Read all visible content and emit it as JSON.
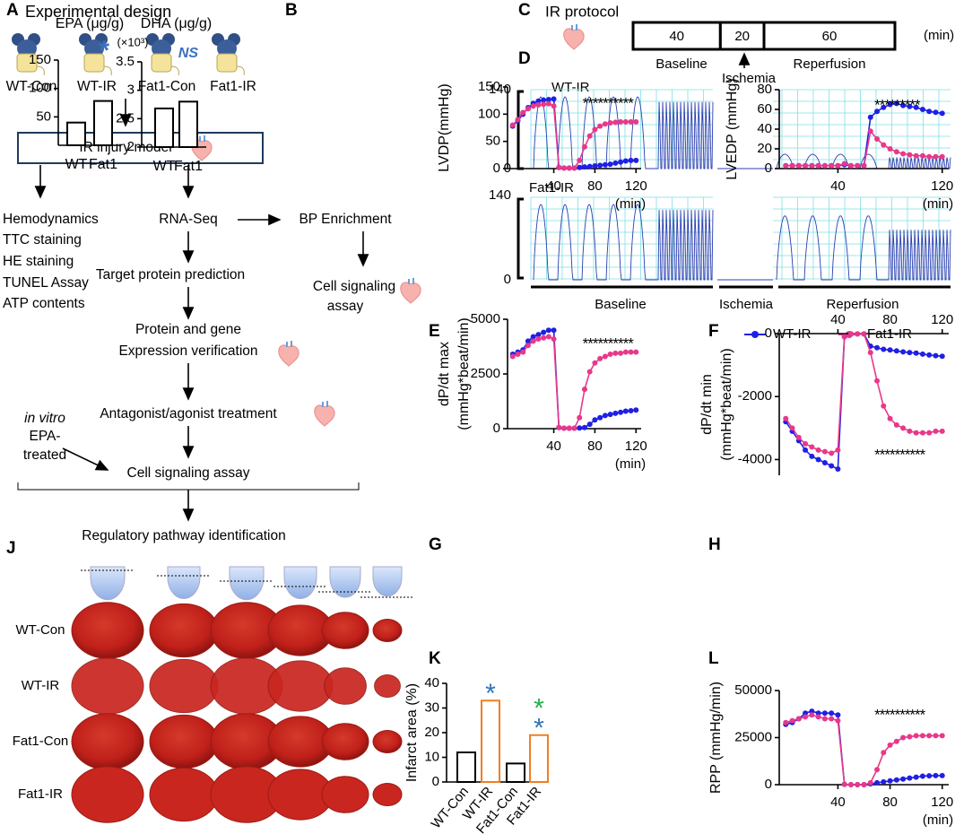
{
  "panel_labels": [
    "A",
    "B",
    "C",
    "D",
    "E",
    "F",
    "G",
    "H",
    "J",
    "K",
    "L"
  ],
  "flowchart": {
    "title": "Experimental design",
    "groups": [
      "WT-Con",
      "WT-IR",
      "Fat1-Con",
      "Fat1-IR"
    ],
    "model": "IR injury model",
    "assays": [
      "Hemodynamics",
      "TTC staining",
      "HE staining",
      "TUNEL Assay",
      "ATP contents"
    ],
    "rna_seq": "RNA-Seq",
    "bp": "BP Enrichment",
    "cell_assay_bp": [
      "Cell signaling",
      "assay"
    ],
    "target": "Target protein prediction",
    "verification": [
      "Protein and gene",
      "Expression verification"
    ],
    "in_vitro": [
      "in vitro",
      "EPA-",
      "treated"
    ],
    "treatment": "Antagonist/agonist treatment",
    "cell_assay": "Cell signaling assay",
    "pathway": "Regulatory pathway identification"
  },
  "protocol": {
    "title": "IR protocol",
    "segments": [
      40,
      20,
      60
    ],
    "unit": "(min)",
    "phases": [
      "Baseline",
      "Ischemia",
      "Reperfusion"
    ]
  },
  "traces": {
    "rows": [
      "WT-IR",
      "Fat1-IR"
    ],
    "ymax": 140,
    "ymin": 0,
    "phases": [
      "Baseline",
      "Ischemia",
      "Reperfusion"
    ]
  },
  "legend": [
    {
      "name": "WT-IR",
      "color": "#1f1fe6"
    },
    {
      "name": "Fat1-IR",
      "color": "#e8388a"
    }
  ],
  "heart_images": {
    "rows": [
      "WT-Con",
      "WT-IR",
      "Fat1-Con",
      "Fat1-IR"
    ]
  },
  "chart_data": [
    {
      "type": "bar",
      "title": "EPA (μg/g)",
      "categories": [
        "WT",
        "Fat1"
      ],
      "values": [
        40,
        78
      ],
      "ylim": [
        0,
        150
      ],
      "yticks": [
        50,
        100,
        150
      ],
      "annotation": "*",
      "annotation_color": "#3b6fc2"
    },
    {
      "type": "bar",
      "title": "DHA (μg/g)",
      "scale_label": "(×10³)",
      "categories": [
        "WT",
        "Fat1"
      ],
      "values": [
        2.68,
        2.8
      ],
      "ylim": [
        2,
        3.5
      ],
      "yticks": [
        2,
        2.5,
        3,
        3.5
      ],
      "annotation": "NS",
      "annotation_color": "#3b6fc2"
    },
    {
      "type": "line",
      "ylabel": "LVDP(mmHg)",
      "xlabel": "(min)",
      "annotation": "**********",
      "x": [
        0,
        5,
        10,
        15,
        20,
        25,
        30,
        35,
        40,
        45,
        50,
        55,
        60,
        65,
        70,
        75,
        80,
        85,
        90,
        95,
        100,
        105,
        110,
        115,
        120
      ],
      "series": [
        {
          "values": [
            78,
            88,
            100,
            112,
            120,
            124,
            126,
            127,
            128,
            2,
            1,
            1,
            1,
            2,
            3,
            4,
            5,
            6,
            7,
            8,
            10,
            12,
            14,
            15,
            15
          ]
        },
        {
          "values": [
            80,
            90,
            103,
            110,
            115,
            117,
            118,
            119,
            115,
            2,
            1,
            1,
            1,
            15,
            40,
            60,
            72,
            78,
            82,
            84,
            85,
            86,
            86,
            86,
            86
          ]
        }
      ],
      "xlim": [
        -5,
        125
      ],
      "xticks": [
        40,
        80,
        120
      ],
      "ylim": [
        0,
        150
      ],
      "yticks": [
        0,
        50,
        100,
        150
      ]
    },
    {
      "type": "line",
      "ylabel": "LVEDP (mmHg)",
      "xlabel": "(min)",
      "annotation": "*********",
      "x": [
        0,
        5,
        10,
        15,
        20,
        25,
        30,
        35,
        40,
        45,
        50,
        55,
        60,
        65,
        70,
        75,
        80,
        85,
        90,
        95,
        100,
        105,
        110,
        115,
        120
      ],
      "series": [
        {
          "values": [
            3,
            3,
            3,
            3,
            3,
            3,
            3,
            3,
            3,
            4,
            3,
            3,
            3,
            52,
            58,
            62,
            65,
            66,
            64,
            63,
            62,
            60,
            58,
            57,
            56
          ]
        },
        {
          "values": [
            3,
            3,
            3,
            3,
            3,
            3,
            3,
            3,
            3,
            5,
            3,
            3,
            3,
            38,
            30,
            24,
            20,
            17,
            15,
            14,
            13,
            13,
            12,
            12,
            12
          ]
        }
      ],
      "xlim": [
        -5,
        125
      ],
      "xticks": [
        40,
        120
      ],
      "ylim": [
        0,
        80
      ],
      "yticks": [
        0,
        20,
        40,
        60,
        80
      ]
    },
    {
      "type": "line",
      "ylabel": "dP/dt max",
      "ylabel2": "(mmHg*beat/min)",
      "xlabel": "(min)",
      "annotation": "**********",
      "x": [
        0,
        5,
        10,
        15,
        20,
        25,
        30,
        35,
        40,
        45,
        50,
        55,
        60,
        65,
        70,
        75,
        80,
        85,
        90,
        95,
        100,
        105,
        110,
        115,
        120
      ],
      "series": [
        {
          "values": [
            3400,
            3500,
            3600,
            4000,
            4200,
            4300,
            4400,
            4500,
            4500,
            50,
            20,
            20,
            20,
            30,
            50,
            200,
            400,
            500,
            600,
            650,
            700,
            750,
            800,
            820,
            850
          ]
        },
        {
          "values": [
            3300,
            3400,
            3500,
            3800,
            4000,
            4100,
            4150,
            4200,
            4100,
            50,
            20,
            20,
            20,
            500,
            1800,
            2600,
            3000,
            3200,
            3300,
            3400,
            3450,
            3450,
            3500,
            3500,
            3500
          ]
        }
      ],
      "xlim": [
        -5,
        125
      ],
      "xticks": [
        40,
        80,
        120
      ],
      "ylim": [
        0,
        5000
      ],
      "yticks": [
        0,
        2500,
        5000
      ]
    },
    {
      "type": "line",
      "ylabel": "dP/dt min",
      "ylabel2": "(mmHg*beat/min)",
      "x_axis": "top",
      "annotation": "**********",
      "x": [
        0,
        5,
        10,
        15,
        20,
        25,
        30,
        35,
        40,
        45,
        50,
        55,
        60,
        65,
        70,
        75,
        80,
        85,
        90,
        95,
        100,
        105,
        110,
        115,
        120
      ],
      "series": [
        {
          "values": [
            -2800,
            -3100,
            -3400,
            -3700,
            -3900,
            -4000,
            -4100,
            -4200,
            -4300,
            -100,
            -10,
            -10,
            -10,
            -400,
            -450,
            -500,
            -520,
            -550,
            -580,
            -600,
            -620,
            -650,
            -680,
            -700,
            -720
          ]
        },
        {
          "values": [
            -2700,
            -3000,
            -3300,
            -3500,
            -3600,
            -3700,
            -3750,
            -3800,
            -3700,
            -100,
            -10,
            -10,
            -10,
            -600,
            -1500,
            -2300,
            -2700,
            -2900,
            -3000,
            -3100,
            -3150,
            -3150,
            -3150,
            -3100,
            -3100
          ]
        }
      ],
      "xlim": [
        -5,
        125
      ],
      "xticks": [
        40,
        80,
        120
      ],
      "ylim": [
        -4500,
        0
      ],
      "yticks": [
        -4000,
        -2000,
        0
      ]
    },
    {
      "type": "bar",
      "ylabel": "Infarct area (%)",
      "categories": [
        "WT-Con",
        "WT-IR",
        "Fat1-Con",
        "Fat1-IR"
      ],
      "values": [
        12,
        33,
        7.5,
        19
      ],
      "colors": [
        "#000000",
        "#f07f22",
        "#000000",
        "#f07f22"
      ],
      "annotations": [
        [],
        [
          {
            "text": "*",
            "color": "#2e75b6"
          }
        ],
        [],
        [
          {
            "text": "*",
            "color": "#22b04b"
          },
          {
            "text": "*",
            "color": "#2e75b6"
          }
        ]
      ],
      "ylim": [
        0,
        40
      ],
      "yticks": [
        0,
        10,
        20,
        30,
        40
      ]
    },
    {
      "type": "line",
      "ylabel": "RPP (mmHg/min)",
      "xlabel": "(min)",
      "annotation": "**********",
      "x": [
        0,
        5,
        10,
        15,
        20,
        25,
        30,
        35,
        40,
        45,
        50,
        55,
        60,
        65,
        70,
        75,
        80,
        85,
        90,
        95,
        100,
        105,
        110,
        115,
        120
      ],
      "series": [
        {
          "values": [
            32000,
            33000,
            35000,
            38000,
            39000,
            38000,
            38000,
            38000,
            37000,
            200,
            0,
            0,
            0,
            500,
            1000,
            1500,
            2000,
            2500,
            3000,
            3500,
            4000,
            4500,
            4700,
            4800,
            4800
          ]
        },
        {
          "values": [
            33000,
            34000,
            35000,
            36000,
            37000,
            36000,
            35000,
            35000,
            34000,
            200,
            0,
            0,
            0,
            1000,
            8000,
            17000,
            21000,
            23000,
            25000,
            25500,
            26000,
            26000,
            26000,
            26000,
            26000
          ]
        }
      ],
      "xlim": [
        -5,
        125
      ],
      "xticks": [
        40,
        80,
        120
      ],
      "ylim": [
        0,
        50000
      ],
      "yticks": [
        0,
        25000,
        50000
      ]
    }
  ]
}
